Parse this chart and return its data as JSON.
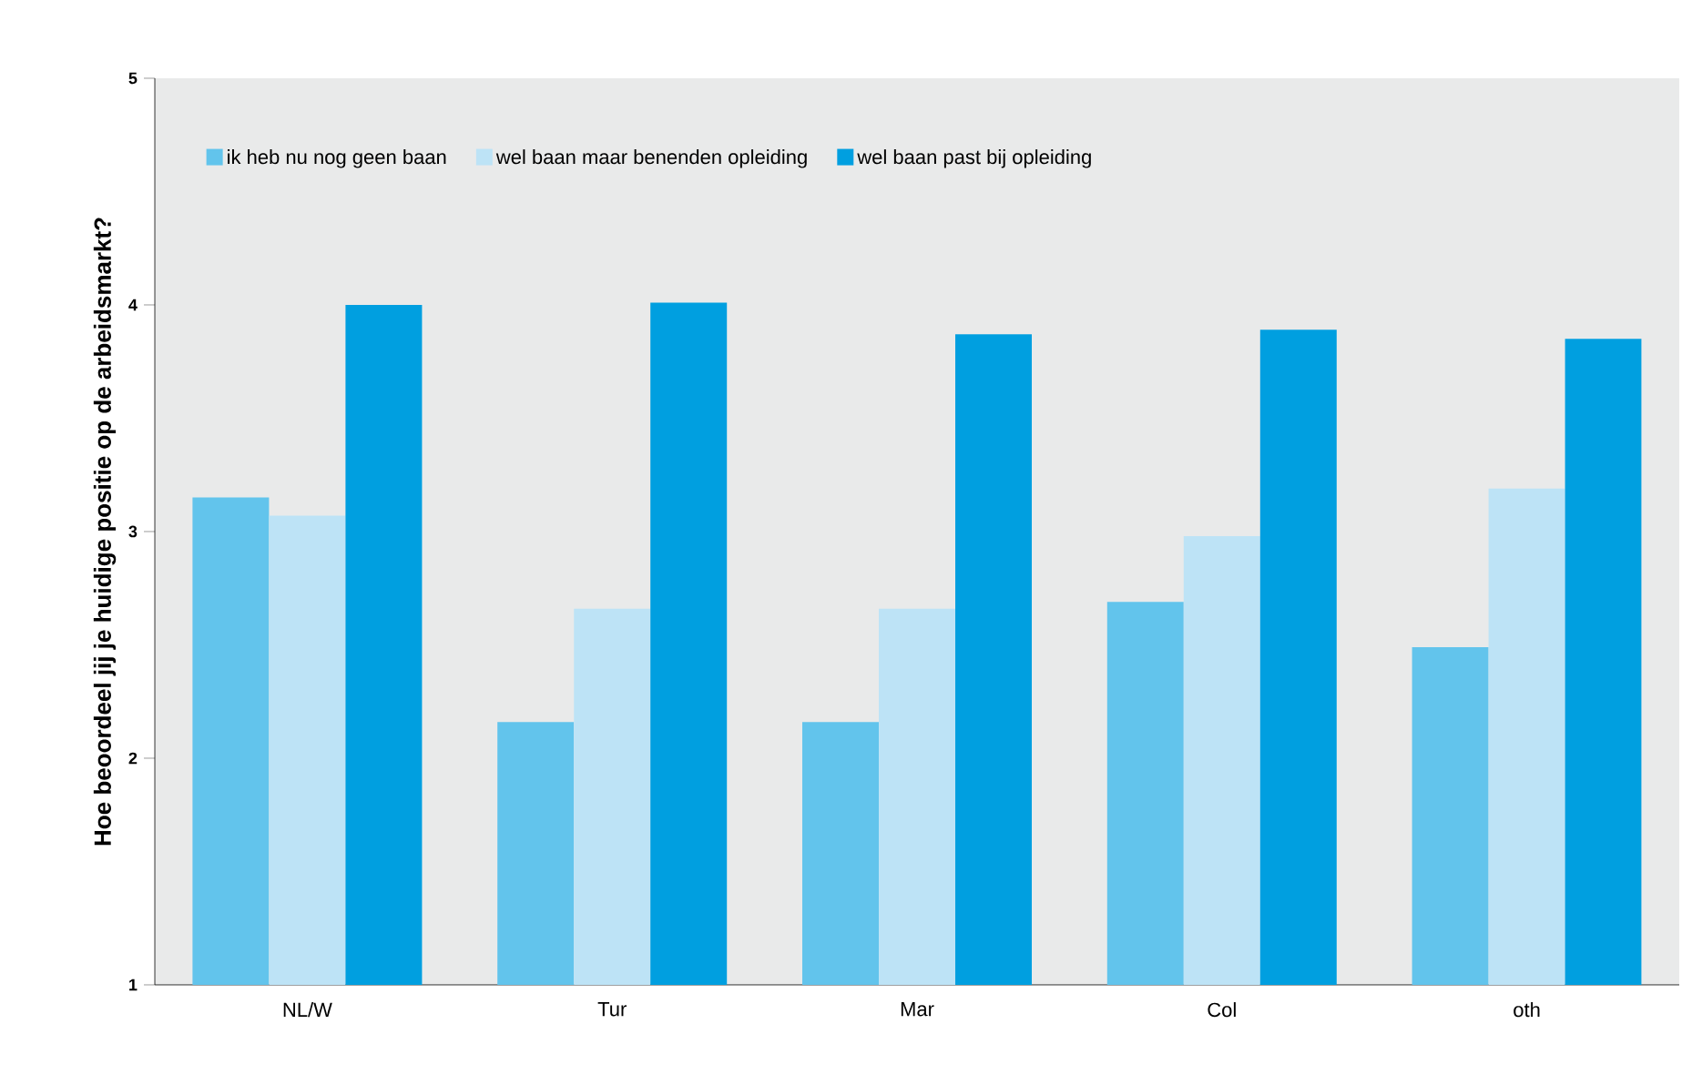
{
  "chart_data": {
    "type": "bar",
    "ylabel": "Hoe beoordeel jij je huidige positie op de arbeidsmarkt?",
    "categories": [
      "NL/W",
      "Tur",
      "Mar",
      "Col",
      "oth"
    ],
    "series": [
      {
        "name": "ik heb nu nog geen baan",
        "color": "#62c4ec",
        "values": [
          3.15,
          2.16,
          2.16,
          2.69,
          2.49
        ]
      },
      {
        "name": "wel baan maar benenden opleiding",
        "color": "#bde3f6",
        "values": [
          3.07,
          2.66,
          2.66,
          2.98,
          3.19
        ]
      },
      {
        "name": "wel baan past bij opleiding",
        "color": "#009fe0",
        "values": [
          4.0,
          4.01,
          3.87,
          3.89,
          3.85
        ]
      }
    ],
    "ylim": [
      1,
      5
    ],
    "yticks": [
      1,
      2,
      3,
      4,
      5
    ],
    "grid": false,
    "legend": "top left"
  }
}
